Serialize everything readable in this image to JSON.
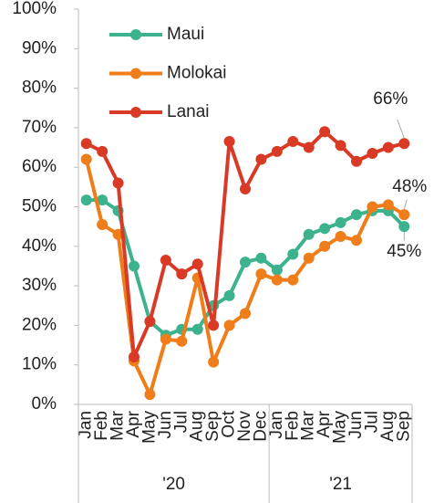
{
  "chart_data": {
    "type": "line",
    "categories": [
      "Jan",
      "Feb",
      "Mar",
      "Apr",
      "May",
      "Jun",
      "Jul",
      "Aug",
      "Sep",
      "Oct",
      "Nov",
      "Dec",
      "Jan",
      "Feb",
      "Mar",
      "Apr",
      "May",
      "Jun",
      "Jul",
      "Aug",
      "Sep"
    ],
    "x_groups": [
      {
        "label": "'20",
        "count": 12
      },
      {
        "label": "'21",
        "count": 9
      }
    ],
    "series": [
      {
        "name": "Maui",
        "color": "#3cb38e",
        "values": [
          51.7,
          51.7,
          49,
          35,
          21,
          17.5,
          19,
          19,
          25,
          27.5,
          36,
          37,
          34,
          38,
          43,
          44.5,
          46,
          48,
          49,
          49,
          45
        ],
        "value_labels": [
          null,
          null,
          null,
          null,
          null,
          null,
          null,
          null,
          null,
          null,
          null,
          null,
          null,
          null,
          null,
          null,
          null,
          null,
          null,
          null,
          "45%"
        ]
      },
      {
        "name": "Molokai",
        "color": "#ee7d1a",
        "values": [
          62,
          45.5,
          43,
          11,
          2.5,
          16.5,
          16,
          32,
          10.7,
          20,
          23,
          33,
          31.5,
          31.5,
          37,
          40,
          42.5,
          41.5,
          50,
          50.5,
          48
        ],
        "value_labels": [
          null,
          null,
          null,
          null,
          null,
          null,
          null,
          null,
          null,
          null,
          null,
          null,
          null,
          null,
          null,
          null,
          null,
          null,
          null,
          null,
          "48%"
        ]
      },
      {
        "name": "Lanai",
        "color": "#d93a26",
        "values": [
          66,
          64,
          56,
          12,
          21,
          36.5,
          33,
          35.5,
          20,
          66.5,
          54.5,
          62,
          64,
          66.5,
          65,
          69,
          65.5,
          61.5,
          63.5,
          65,
          66
        ],
        "value_labels": [
          null,
          null,
          null,
          null,
          null,
          null,
          null,
          null,
          null,
          null,
          null,
          null,
          null,
          null,
          null,
          null,
          null,
          null,
          null,
          null,
          "66%"
        ]
      }
    ],
    "ylim": [
      0,
      100
    ],
    "yticks": [
      {
        "value": 0,
        "label": "0%"
      },
      {
        "value": 10,
        "label": "10%"
      },
      {
        "value": 20,
        "label": "20%"
      },
      {
        "value": 30,
        "label": "30%"
      },
      {
        "value": 40,
        "label": "40%"
      },
      {
        "value": 50,
        "label": "50%"
      },
      {
        "value": 60,
        "label": "60%"
      },
      {
        "value": 70,
        "label": "70%"
      },
      {
        "value": 80,
        "label": "80%"
      },
      {
        "value": 90,
        "label": "90%"
      },
      {
        "value": 100,
        "label": "100%"
      }
    ],
    "legend": "upper left"
  }
}
